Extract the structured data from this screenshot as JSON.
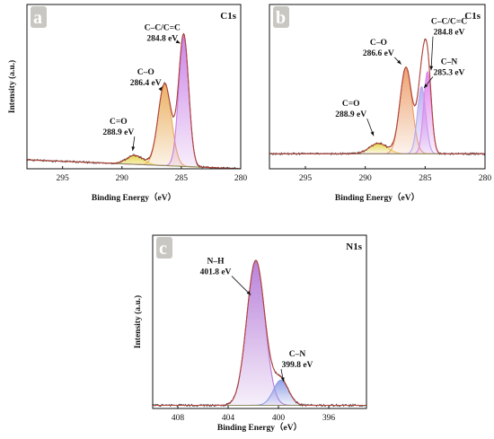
{
  "chart_data": [
    {
      "panel": "a",
      "type": "line",
      "tag": "C1s",
      "xlabel": "Binding Energy（eV）",
      "ylabel": "Intensity (a.u.)",
      "xlim": [
        298,
        280
      ],
      "ylim": [
        0,
        1.1
      ],
      "xticks": [
        295,
        290,
        285,
        280
      ],
      "grid": false,
      "baseline": {
        "x_start": 298,
        "x_end": 280,
        "y_start": 0.06,
        "y_end": 0.0
      },
      "components": [
        {
          "label": "C=O",
          "center": 288.9,
          "height": 0.06,
          "width": 0.7,
          "color": "#e6d548"
        },
        {
          "label": "C–O",
          "center": 286.4,
          "height": 0.55,
          "width": 0.55,
          "color": "#e9ad5c"
        },
        {
          "label": "C–C/C=C",
          "center": 284.8,
          "height": 0.88,
          "width": 0.42,
          "color": "#c77ee6"
        }
      ],
      "annotations": [
        {
          "lines": [
            "C=O",
            "288.9 eV"
          ],
          "x": 290.3,
          "y": 0.3,
          "arrow_to": [
            289.1,
            0.12
          ]
        },
        {
          "lines": [
            "C–O",
            "286.4 eV"
          ],
          "x": 288.0,
          "y": 0.63,
          "arrow_to": [
            286.6,
            0.55
          ]
        },
        {
          "lines": [
            "C–C/C=C",
            "284.8 eV"
          ],
          "x": 286.6,
          "y": 0.93,
          "arrow_to": [
            285.1,
            0.84
          ]
        }
      ]
    },
    {
      "panel": "b",
      "type": "line",
      "tag": "C1s",
      "xlabel": "Binding Energy（eV）",
      "ylabel": "",
      "xlim": [
        298,
        280
      ],
      "ylim": [
        0,
        1.1
      ],
      "xticks": [
        295,
        290,
        285,
        280
      ],
      "grid": false,
      "baseline": {
        "x_start": 298,
        "x_end": 280,
        "y_start": 0.1,
        "y_end": 0.1
      },
      "components": [
        {
          "label": "C=O",
          "center": 288.9,
          "height": 0.07,
          "width": 0.75,
          "color": "#e6d548"
        },
        {
          "label": "C–O",
          "center": 286.6,
          "height": 0.58,
          "width": 0.5,
          "color": "#eb9e6a"
        },
        {
          "label": "C–N",
          "center": 285.3,
          "height": 0.45,
          "width": 0.35,
          "color": "#b6aaf0"
        },
        {
          "label": "C–C/C=C",
          "center": 284.8,
          "height": 0.55,
          "width": 0.32,
          "color": "#e084ea"
        }
      ],
      "annotations": [
        {
          "lines": [
            "C=O",
            "288.9 eV"
          ],
          "x": 291.2,
          "y": 0.42,
          "arrow_to": [
            289.3,
            0.22
          ]
        },
        {
          "lines": [
            "C–O",
            "286.6 eV"
          ],
          "x": 288.9,
          "y": 0.83,
          "arrow_to": [
            287.0,
            0.7
          ]
        },
        {
          "lines": [
            "C–C/C=C",
            "284.8 eV"
          ],
          "x": 283.0,
          "y": 0.97,
          "arrow_to": [
            284.5,
            0.66
          ]
        },
        {
          "lines": [
            "C–N",
            "285.3 eV"
          ],
          "x": 283.0,
          "y": 0.7,
          "arrow_to": [
            285.1,
            0.54
          ]
        }
      ]
    },
    {
      "panel": "c",
      "type": "line",
      "tag": "N1s",
      "xlabel": "Binding Energy（eV）",
      "ylabel": "Intensity (a.u.)",
      "xlim": [
        410,
        393
      ],
      "ylim": [
        0,
        1.1
      ],
      "xticks": [
        408,
        404,
        400,
        396
      ],
      "grid": false,
      "baseline": {
        "x_start": 410,
        "x_end": 393,
        "y_start": 0.02,
        "y_end": 0.02
      },
      "components": [
        {
          "label": "N–H",
          "center": 401.8,
          "height": 0.92,
          "width": 0.72,
          "color": "#b57bd8"
        },
        {
          "label": "C–N",
          "center": 399.8,
          "height": 0.16,
          "width": 0.6,
          "color": "#8c9ce6"
        }
      ],
      "annotations": [
        {
          "lines": [
            "N–H",
            "401.8 eV"
          ],
          "x": 405.0,
          "y": 0.92,
          "arrow_to": [
            402.2,
            0.72
          ]
        },
        {
          "lines": [
            "C–N",
            "399.8 eV"
          ],
          "x": 398.5,
          "y": 0.33,
          "arrow_to": [
            399.6,
            0.17
          ]
        }
      ]
    }
  ]
}
